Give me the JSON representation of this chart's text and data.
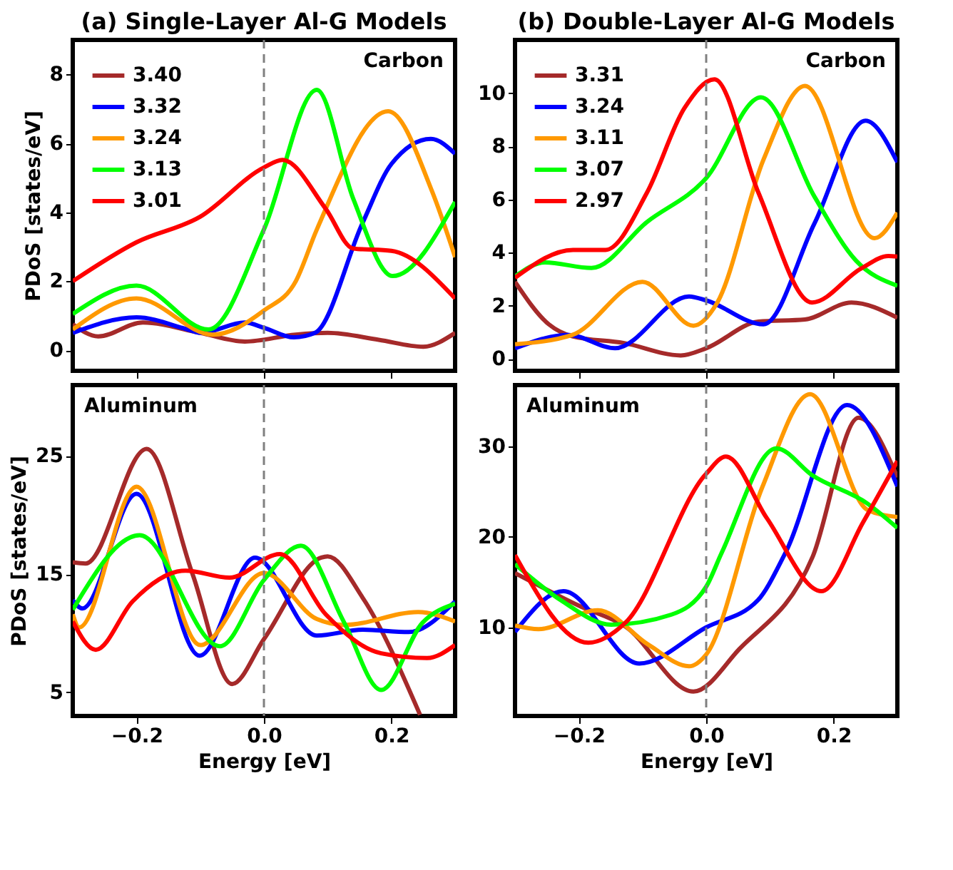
{
  "chart_data": [
    {
      "type": "line",
      "title": "(a) Single-Layer Al-G Models",
      "ylabel": "PDoS [states/eV]",
      "annotations": [
        "Carbon"
      ],
      "xlim": [
        -0.3,
        0.3
      ],
      "xticks": [
        {
          "value": -0.2,
          "label": null
        },
        {
          "value": 0,
          "label": null
        },
        {
          "value": 0.2,
          "label": null
        }
      ],
      "ylim": [
        -0.6,
        9
      ],
      "yticks": [
        0,
        2,
        4,
        6,
        8
      ],
      "tick_labels": "y",
      "legend": "top left",
      "grid": false,
      "ref_lines": [
        {
          "axis": "x",
          "value": 0,
          "color": "#808080",
          "line_style": "dashed"
        }
      ],
      "series": [
        {
          "name": "3.40",
          "color": "#a52a2a",
          "x": [
            -0.3,
            -0.26,
            -0.19,
            -0.1,
            -0.03,
            0.05,
            0.1,
            0.18,
            0.25,
            0.3
          ],
          "values": [
            0.75,
            0.4,
            0.8,
            0.5,
            0.25,
            0.45,
            0.5,
            0.3,
            0.1,
            0.5
          ]
        },
        {
          "name": "3.32",
          "color": "#0000ff",
          "x": [
            -0.3,
            -0.2,
            -0.12,
            -0.1,
            -0.03,
            0,
            0.047,
            0.08,
            0.155,
            0.2,
            0.262,
            0.3
          ],
          "values": [
            0.5,
            0.95,
            0.6,
            0.5,
            0.8,
            0.65,
            0.37,
            0.5,
            3.7,
            5.4,
            6.13,
            5.7
          ]
        },
        {
          "name": "3.24",
          "color": "#ff9900",
          "x": [
            -0.3,
            -0.2,
            -0.08,
            0,
            0.05,
            0.083,
            0.195,
            0.264,
            0.3
          ],
          "values": [
            0.6,
            1.5,
            0.45,
            1.15,
            2,
            3.5,
            6.93,
            4.6,
            2.7
          ]
        },
        {
          "name": "3.13",
          "color": "#00ff00",
          "x": [
            -0.3,
            -0.2,
            -0.087,
            0,
            0.083,
            0.14,
            0.202,
            0.3
          ],
          "values": [
            1.05,
            1.87,
            0.6,
            3.5,
            7.55,
            4.4,
            2.15,
            4.3
          ]
        },
        {
          "name": "3.01",
          "color": "#ff0000",
          "x": [
            -0.3,
            -0.2,
            -0.1,
            0,
            0.029,
            0.097,
            0.14,
            0.2,
            0.3
          ],
          "values": [
            2,
            3.13,
            3.87,
            5.3,
            5.52,
            4.1,
            2.95,
            2.88,
            1.5
          ]
        }
      ]
    },
    {
      "type": "line",
      "title": "(b) Double-Layer Al-G Models",
      "annotations": [
        "Carbon"
      ],
      "xlim": [
        -0.3,
        0.3
      ],
      "xticks": [
        {
          "value": -0.2,
          "label": null
        },
        {
          "value": 0,
          "label": null
        },
        {
          "value": 0.2,
          "label": null
        }
      ],
      "ylim": [
        -0.45,
        12
      ],
      "yticks": [
        0,
        2,
        4,
        6,
        8,
        10
      ],
      "tick_labels": "y",
      "legend": "top left",
      "grid": false,
      "ref_lines": [
        {
          "axis": "x",
          "value": 0,
          "color": "#808080",
          "line_style": "dashed"
        }
      ],
      "series": [
        {
          "name": "3.31",
          "color": "#a52a2a",
          "x": [
            -0.3,
            -0.247,
            -0.21,
            -0.13,
            -0.04,
            0,
            0.082,
            0.155,
            0.228,
            0.3
          ],
          "values": [
            2.9,
            1.3,
            0.85,
            0.6,
            0.13,
            0.4,
            1.4,
            1.48,
            2.12,
            1.55
          ]
        },
        {
          "name": "3.24",
          "color": "#0000ff",
          "x": [
            -0.3,
            -0.216,
            -0.143,
            -0.027,
            0,
            0.09,
            0.17,
            0.25,
            0.3
          ],
          "values": [
            0.4,
            0.9,
            0.4,
            2.35,
            2.2,
            1.3,
            5.1,
            8.96,
            7.4
          ]
        },
        {
          "name": "3.11",
          "color": "#ff9900",
          "x": [
            -0.3,
            -0.21,
            -0.1,
            -0.02,
            0.017,
            0.09,
            0.155,
            0.264,
            0.3
          ],
          "values": [
            0.55,
            0.9,
            2.9,
            1.25,
            2.1,
            7.5,
            10.27,
            4.54,
            5.5
          ]
        },
        {
          "name": "3.07",
          "color": "#00ff00",
          "x": [
            -0.3,
            -0.253,
            -0.18,
            -0.093,
            0,
            0.086,
            0.17,
            0.235,
            0.3
          ],
          "values": [
            3.1,
            3.63,
            3.42,
            5.15,
            6.8,
            9.84,
            6.1,
            3.7,
            2.75
          ]
        },
        {
          "name": "2.97",
          "color": "#ff0000",
          "x": [
            -0.3,
            -0.209,
            -0.158,
            -0.093,
            -0.034,
            0.013,
            0.082,
            0.166,
            0.243,
            0.286,
            0.3
          ],
          "values": [
            3.05,
            4.1,
            4.1,
            6.25,
            9.44,
            10.52,
            6.25,
            2.12,
            3.4,
            3.87,
            3.85
          ]
        }
      ]
    },
    {
      "type": "line",
      "xlabel": "Energy [eV]",
      "ylabel": "PDoS [states/eV]",
      "annotations": [
        "Aluminum"
      ],
      "xlim": [
        -0.3,
        0.3
      ],
      "xticks": [
        {
          "value": -0.2,
          "label": "−0.2"
        },
        {
          "value": 0,
          "label": "0.0"
        },
        {
          "value": 0.2,
          "label": "0.2"
        }
      ],
      "ylim": [
        3,
        31
      ],
      "yticks": [
        5,
        15,
        25
      ],
      "grid": false,
      "ref_lines": [
        {
          "axis": "x",
          "value": 0,
          "color": "#808080",
          "line_style": "dashed"
        }
      ],
      "series": [
        {
          "color": "#a52a2a",
          "x": [
            -0.3,
            -0.28,
            -0.184,
            -0.112,
            -0.05,
            0,
            0.09,
            0.1,
            0.155,
            0.245
          ],
          "values": [
            16,
            15.9,
            25.6,
            15,
            5.7,
            9.5,
            16.4,
            16.5,
            13,
            3.1
          ]
        },
        {
          "color": "#0000ff",
          "x": [
            -0.3,
            -0.285,
            -0.2,
            -0.101,
            -0.014,
            0.083,
            0.155,
            0.227,
            0.3
          ],
          "values": [
            12.8,
            12.1,
            21.8,
            8.1,
            16.4,
            9.8,
            10.3,
            10.1,
            12.7
          ]
        },
        {
          "color": "#ff9900",
          "x": [
            -0.3,
            -0.29,
            -0.2,
            -0.1,
            0,
            0.083,
            0.126,
            0.242,
            0.3
          ],
          "values": [
            11.6,
            10.5,
            22.4,
            9,
            15.1,
            11.2,
            10.7,
            11.8,
            11
          ]
        },
        {
          "color": "#00ff00",
          "x": [
            -0.3,
            -0.195,
            -0.069,
            0,
            0.058,
            0.126,
            0.184,
            0.249,
            0.3
          ],
          "values": [
            12,
            18.3,
            8.9,
            14.5,
            17.4,
            10.9,
            5.2,
            10.9,
            12.5
          ]
        },
        {
          "color": "#ff0000",
          "x": [
            -0.3,
            -0.264,
            -0.206,
            -0.123,
            -0.054,
            0.025,
            0.097,
            0.184,
            0.256,
            0.3
          ],
          "values": [
            11,
            8.6,
            12.7,
            15.3,
            14.7,
            16.7,
            11.6,
            8.3,
            7.9,
            9
          ]
        }
      ]
    },
    {
      "type": "line",
      "xlabel": "Energy [eV]",
      "annotations": [
        "Aluminum"
      ],
      "xlim": [
        -0.3,
        0.3
      ],
      "xticks": [
        {
          "value": -0.2,
          "label": "−0.2"
        },
        {
          "value": 0,
          "label": "0.0"
        },
        {
          "value": 0.2,
          "label": "0.2"
        }
      ],
      "ylim": [
        0.2,
        36.8
      ],
      "yticks": [
        10,
        20,
        30
      ],
      "grid": false,
      "ref_lines": [
        {
          "axis": "x",
          "value": 0,
          "color": "#808080",
          "line_style": "dashed"
        }
      ],
      "series": [
        {
          "color": "#a52a2a",
          "x": [
            -0.3,
            -0.2,
            -0.127,
            -0.02,
            0.052,
            0.167,
            0.239,
            0.3
          ],
          "values": [
            16,
            12.4,
            10.1,
            2.9,
            7.6,
            17.8,
            33.2,
            26.6
          ]
        },
        {
          "color": "#0000ff",
          "x": [
            -0.3,
            -0.224,
            -0.105,
            0,
            0.081,
            0.124,
            0.221,
            0.3
          ],
          "values": [
            9.5,
            14,
            6,
            10,
            13,
            18.2,
            34.6,
            25.6
          ]
        },
        {
          "color": "#ff9900",
          "x": [
            -0.3,
            -0.263,
            -0.17,
            -0.091,
            -0.027,
            0,
            0.088,
            0.163,
            0.253,
            0.3
          ],
          "values": [
            10.2,
            9.8,
            11.9,
            8.1,
            5.7,
            7,
            25.5,
            35.8,
            23,
            22.2
          ]
        },
        {
          "color": "#00ff00",
          "x": [
            -0.3,
            -0.228,
            -0.149,
            -0.055,
            0,
            0.024,
            0.11,
            0.167,
            0.253,
            0.3
          ],
          "values": [
            17,
            13,
            10.3,
            11.4,
            14.5,
            18.2,
            29.8,
            26.8,
            23.7,
            21
          ]
        },
        {
          "color": "#ff0000",
          "x": [
            -0.3,
            -0.185,
            -0.127,
            0,
            0.031,
            0.095,
            0.181,
            0.246,
            0.3
          ],
          "values": [
            18,
            8.3,
            10.5,
            27,
            28.9,
            22.1,
            14,
            21.6,
            28.4
          ]
        }
      ]
    }
  ]
}
